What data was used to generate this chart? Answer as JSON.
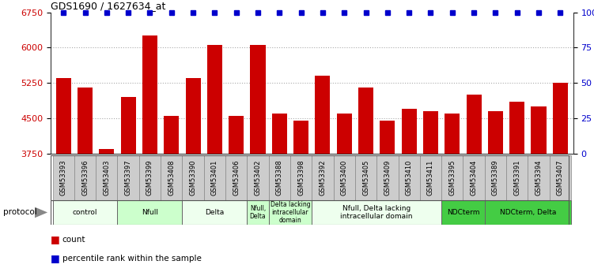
{
  "title": "GDS1690 / 1627634_at",
  "samples": [
    "GSM53393",
    "GSM53396",
    "GSM53403",
    "GSM53397",
    "GSM53399",
    "GSM53408",
    "GSM53390",
    "GSM53401",
    "GSM53406",
    "GSM53402",
    "GSM53388",
    "GSM53398",
    "GSM53392",
    "GSM53400",
    "GSM53405",
    "GSM53409",
    "GSM53410",
    "GSM53411",
    "GSM53395",
    "GSM53404",
    "GSM53389",
    "GSM53391",
    "GSM53394",
    "GSM53407"
  ],
  "counts": [
    5350,
    5150,
    3850,
    4950,
    6250,
    4550,
    5350,
    6050,
    4550,
    6050,
    4600,
    4450,
    5400,
    4600,
    5150,
    4450,
    4700,
    4650,
    4600,
    5000,
    4650,
    4850,
    4750,
    5250
  ],
  "bar_color": "#cc0000",
  "percentile_color": "#0000cc",
  "ylim": [
    3750,
    6750
  ],
  "y_ticks": [
    3750,
    4500,
    5250,
    6000,
    6750
  ],
  "right_y_ticks": [
    0,
    25,
    50,
    75,
    100
  ],
  "right_y_labels": [
    "0",
    "25",
    "50",
    "75",
    "100%"
  ],
  "protocol_groups": [
    {
      "label": "control",
      "start": 0,
      "end": 2,
      "color": "#eeffee"
    },
    {
      "label": "Nfull",
      "start": 3,
      "end": 5,
      "color": "#ccffcc"
    },
    {
      "label": "Delta",
      "start": 6,
      "end": 8,
      "color": "#eeffee"
    },
    {
      "label": "Nfull,\nDelta",
      "start": 9,
      "end": 9,
      "color": "#ccffcc"
    },
    {
      "label": "Delta lacking\nintracellular\ndomain",
      "start": 10,
      "end": 11,
      "color": "#ccffcc"
    },
    {
      "label": "Nfull, Delta lacking\nintracellular domain",
      "start": 12,
      "end": 17,
      "color": "#eeffee"
    },
    {
      "label": "NDCterm",
      "start": 18,
      "end": 19,
      "color": "#44cc44"
    },
    {
      "label": "NDCterm, Delta",
      "start": 20,
      "end": 23,
      "color": "#44cc44"
    }
  ],
  "tick_label_bg": "#cccccc",
  "grid_color": "#aaaaaa",
  "bg_color": "#ffffff"
}
